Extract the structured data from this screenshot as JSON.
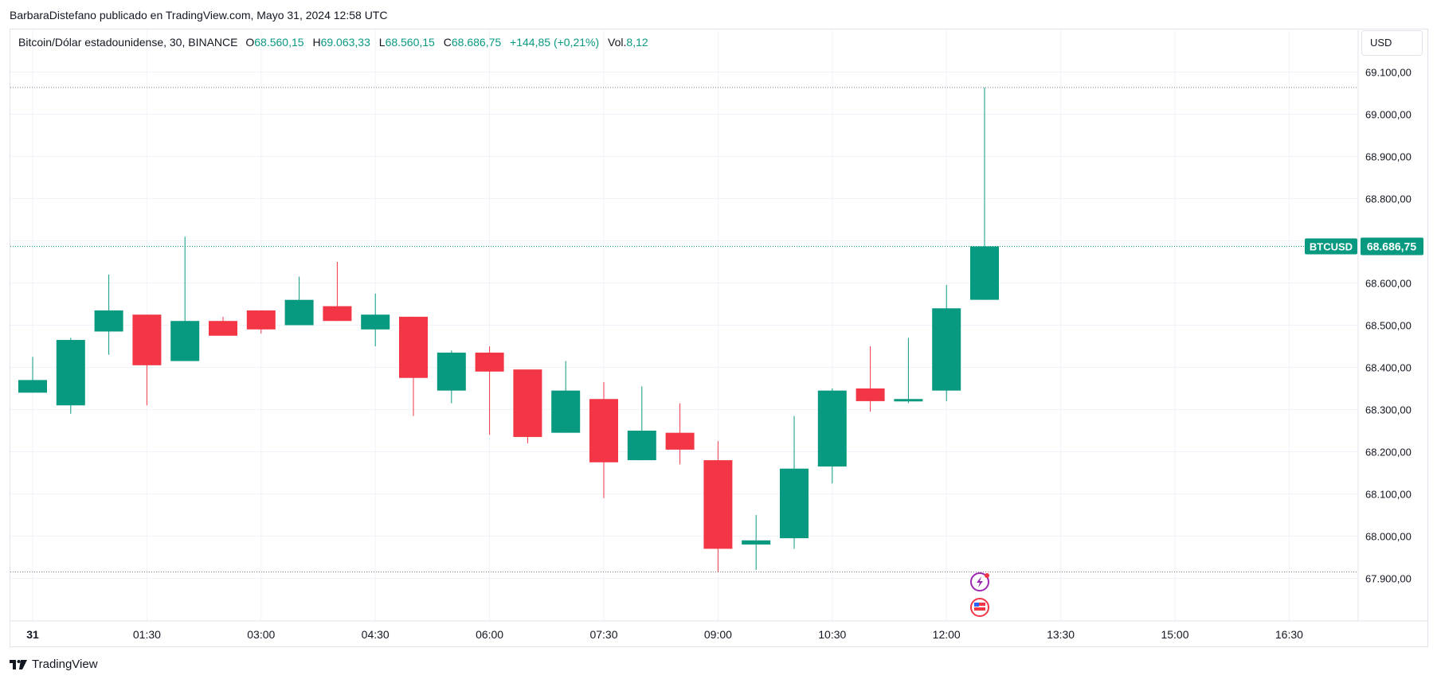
{
  "header": {
    "published_by": "BarbaraDistefano publicado en TradingView.com, Mayo 31, 2024 12:58 UTC"
  },
  "legend": {
    "symbol": "Bitcoin/Dólar estadounidense, 30, BINANCE",
    "open_label": "O",
    "open_value": "68.560,15",
    "high_label": "H",
    "high_value": "69.063,33",
    "low_label": "L",
    "low_value": "68.560,15",
    "close_label": "C",
    "close_value": "68.686,75",
    "change": "+144,85 (+0,21%)",
    "vol_label": "Vol.",
    "vol_value": "8,12"
  },
  "currency": "USD",
  "footer": {
    "brand": "TradingView"
  },
  "colors": {
    "up": "#089981",
    "down": "#f23645",
    "grid": "#f0f3fa",
    "text": "#131722"
  },
  "chart_data": {
    "type": "candlestick",
    "ylim": [
      67800,
      69150
    ],
    "y_ticks": [
      67900,
      68000,
      68100,
      68200,
      68300,
      68400,
      68500,
      68600,
      68700,
      68800,
      68900,
      69000,
      69100
    ],
    "y_tick_labels": [
      "67.900,00",
      "68.000,00",
      "68.100,00",
      "68.200,00",
      "68.300,00",
      "68.400,00",
      "68.500,00",
      "68.600,00",
      "68.700,00",
      "68.800,00",
      "68.900,00",
      "69.000,00",
      "69.100,00"
    ],
    "x_tick_labels": [
      "31",
      "01:30",
      "03:00",
      "04:30",
      "06:00",
      "07:30",
      "09:00",
      "10:30",
      "12:00",
      "13:30",
      "15:00",
      "16:30"
    ],
    "price_label": {
      "symbol": "BTCUSD",
      "value": "68.686,75",
      "price": 68686.75
    },
    "high_line": 69063.33,
    "low_line": 67915,
    "candles": [
      {
        "o": 68340,
        "h": 68425,
        "l": 68340,
        "c": 68370
      },
      {
        "o": 68310,
        "h": 68470,
        "l": 68290,
        "c": 68465
      },
      {
        "o": 68485,
        "h": 68620,
        "l": 68430,
        "c": 68535
      },
      {
        "o": 68525,
        "h": 68525,
        "l": 68310,
        "c": 68405
      },
      {
        "o": 68415,
        "h": 68710,
        "l": 68415,
        "c": 68510
      },
      {
        "o": 68510,
        "h": 68520,
        "l": 68475,
        "c": 68475
      },
      {
        "o": 68535,
        "h": 68535,
        "l": 68480,
        "c": 68490
      },
      {
        "o": 68500,
        "h": 68615,
        "l": 68500,
        "c": 68560
      },
      {
        "o": 68545,
        "h": 68650,
        "l": 68510,
        "c": 68510
      },
      {
        "o": 68490,
        "h": 68575,
        "l": 68450,
        "c": 68525
      },
      {
        "o": 68520,
        "h": 68520,
        "l": 68285,
        "c": 68375
      },
      {
        "o": 68345,
        "h": 68440,
        "l": 68315,
        "c": 68435
      },
      {
        "o": 68435,
        "h": 68450,
        "l": 68240,
        "c": 68390
      },
      {
        "o": 68395,
        "h": 68395,
        "l": 68220,
        "c": 68235
      },
      {
        "o": 68245,
        "h": 68415,
        "l": 68245,
        "c": 68345
      },
      {
        "o": 68325,
        "h": 68365,
        "l": 68090,
        "c": 68175
      },
      {
        "o": 68180,
        "h": 68355,
        "l": 68180,
        "c": 68250
      },
      {
        "o": 68245,
        "h": 68315,
        "l": 68170,
        "c": 68205
      },
      {
        "o": 68180,
        "h": 68225,
        "l": 67915,
        "c": 67970
      },
      {
        "o": 67980,
        "h": 68050,
        "l": 67920,
        "c": 67990
      },
      {
        "o": 67995,
        "h": 68285,
        "l": 67970,
        "c": 68160
      },
      {
        "o": 68165,
        "h": 68350,
        "l": 68125,
        "c": 68345
      },
      {
        "o": 68350,
        "h": 68450,
        "l": 68295,
        "c": 68320
      },
      {
        "o": 68320,
        "h": 68470,
        "l": 68315,
        "c": 68325
      },
      {
        "o": 68345,
        "h": 68595,
        "l": 68320,
        "c": 68540
      },
      {
        "o": 68560.15,
        "h": 69063.33,
        "l": 68560.15,
        "c": 68686.75
      }
    ]
  }
}
